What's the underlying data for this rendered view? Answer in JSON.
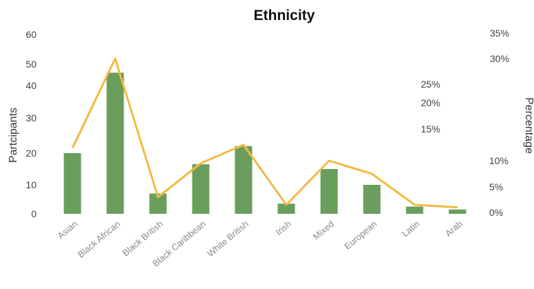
{
  "chart_data": {
    "type": "bar",
    "title": "Ethnicity",
    "ylabel": "Partcipants",
    "y2label": "Percentage",
    "categories": [
      "Asian",
      "Black African",
      "Black British",
      "Black Caribbean",
      "White British",
      "Irish",
      "Mixed",
      "European",
      "Latin",
      "Arab"
    ],
    "series": [
      {
        "type": "bar",
        "axis": "left",
        "color": "#6a9e5c",
        "values": [
          20,
          46,
          7,
          16.5,
          22,
          3.5,
          15,
          10,
          2.5,
          1.5
        ]
      },
      {
        "type": "line",
        "axis": "right",
        "color": "#f4b942",
        "values": [
          12,
          30,
          3,
          9.5,
          12.5,
          1.5,
          10,
          7.5,
          1.5,
          1
        ]
      }
    ],
    "y_ticks": [
      "0",
      "10",
      "20",
      "30",
      "40",
      "50",
      "60"
    ],
    "y2_ticks": [
      "0%",
      "5%",
      "10%",
      "15%",
      "20%",
      "25%",
      "30%",
      "35%"
    ],
    "ylim": [
      0,
      60
    ],
    "y2lim": [
      0,
      35
    ],
    "grid": false
  }
}
